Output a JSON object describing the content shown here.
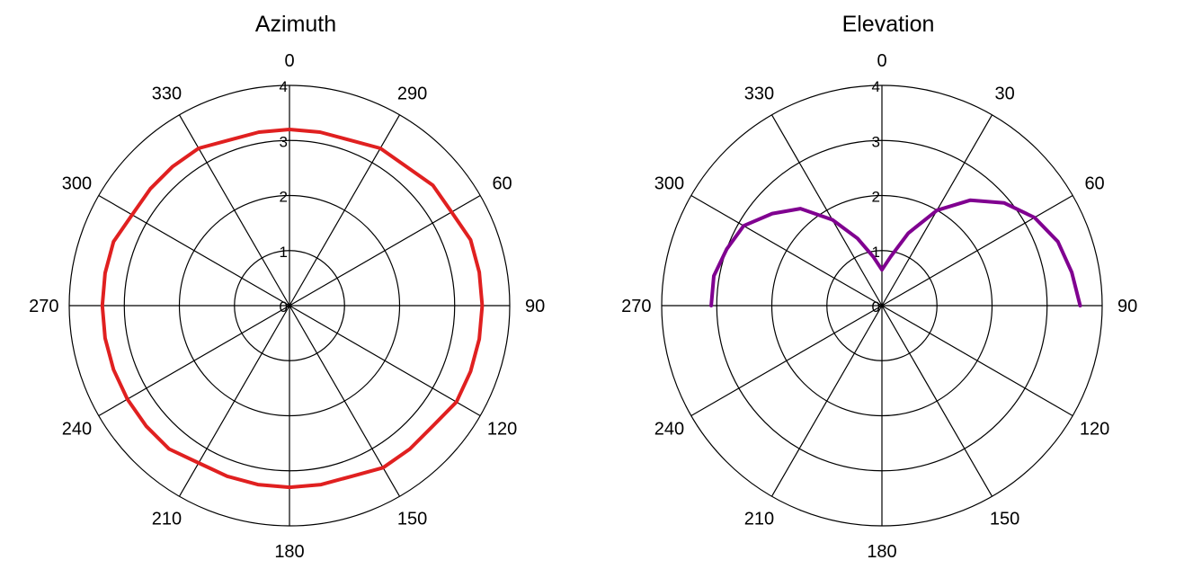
{
  "chart_data": [
    {
      "type": "polar-line",
      "title": "Azimuth",
      "angle_labels": [
        "0",
        "290",
        "60",
        "90",
        "120",
        "150",
        "180",
        "210",
        "240",
        "270",
        "300",
        "330"
      ],
      "radial_ticks": [
        "0",
        "1",
        "2",
        "3",
        "4"
      ],
      "rlim": [
        0,
        4
      ],
      "grid": true,
      "series": [
        {
          "color": "#e02020",
          "theta_deg": [
            0,
            10,
            20,
            30,
            40,
            50,
            60,
            70,
            80,
            90,
            100,
            110,
            120,
            130,
            140,
            150,
            160,
            170,
            180,
            190,
            200,
            210,
            220,
            230,
            240,
            250,
            260,
            270,
            280,
            290,
            300,
            310,
            320,
            330,
            340,
            350,
            360
          ],
          "r": [
            3.2,
            3.2,
            3.2,
            3.3,
            3.3,
            3.4,
            3.4,
            3.5,
            3.5,
            3.5,
            3.5,
            3.5,
            3.5,
            3.4,
            3.4,
            3.4,
            3.3,
            3.3,
            3.3,
            3.3,
            3.3,
            3.3,
            3.4,
            3.4,
            3.4,
            3.4,
            3.4,
            3.4,
            3.4,
            3.4,
            3.3,
            3.3,
            3.3,
            3.3,
            3.2,
            3.2,
            3.2
          ]
        }
      ]
    },
    {
      "type": "polar-line",
      "title": "Elevation",
      "angle_labels": [
        "0",
        "30",
        "60",
        "90",
        "120",
        "150",
        "180",
        "210",
        "240",
        "270",
        "300",
        "330"
      ],
      "radial_ticks": [
        "0",
        "1",
        "2",
        "3",
        "4"
      ],
      "rlim": [
        0,
        4
      ],
      "grid": true,
      "series": [
        {
          "color": "#800090",
          "theta_deg": [
            -90,
            -80,
            -70,
            -60,
            -50,
            -40,
            -30,
            -20,
            -10,
            0,
            10,
            20,
            30,
            40,
            50,
            60,
            70,
            80,
            90
          ],
          "r": [
            3.1,
            3.1,
            3.0,
            2.9,
            2.6,
            2.3,
            1.8,
            1.3,
            0.9,
            0.65,
            0.9,
            1.4,
            2.0,
            2.5,
            2.9,
            3.2,
            3.4,
            3.5,
            3.6
          ]
        }
      ]
    }
  ]
}
